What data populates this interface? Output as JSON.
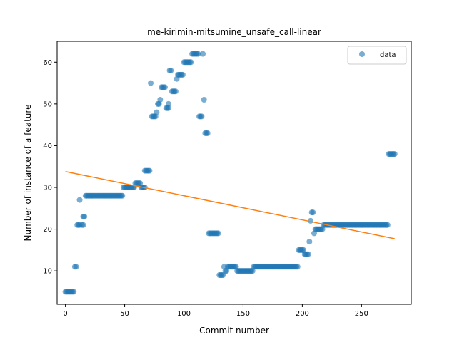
{
  "chart_data": {
    "type": "scatter",
    "title": "me-kirimin-mitsumine_unsafe_call-linear",
    "xlabel": "Commit number",
    "ylabel": "Number of instance of a feature",
    "xlim": [
      -7,
      292
    ],
    "ylim": [
      2,
      65
    ],
    "x_ticks": [
      0,
      50,
      100,
      150,
      200,
      250
    ],
    "y_ticks": [
      10,
      20,
      30,
      40,
      50,
      60
    ],
    "grid": false,
    "legend": {
      "position": "top-right",
      "entries": [
        "data"
      ]
    },
    "colors": {
      "data": "#1f77b4",
      "fit": "#ff7f0e"
    },
    "series": [
      {
        "name": "data",
        "marker": "circle",
        "segments": [
          [
            0,
            7,
            5
          ],
          [
            8,
            9,
            11
          ],
          [
            10,
            12,
            21
          ],
          [
            12,
            12,
            27
          ],
          [
            14,
            15,
            21
          ],
          [
            15,
            16,
            23
          ],
          [
            17,
            48,
            28
          ],
          [
            49,
            58,
            30
          ],
          [
            59,
            63,
            31
          ],
          [
            64,
            67,
            30
          ],
          [
            67,
            71,
            34
          ],
          [
            72,
            72,
            55
          ],
          [
            73,
            76,
            47
          ],
          [
            77,
            77,
            48
          ],
          [
            78,
            79,
            50
          ],
          [
            80,
            80,
            51
          ],
          [
            81,
            84,
            54
          ],
          [
            85,
            87,
            49
          ],
          [
            87,
            87,
            50
          ],
          [
            88,
            89,
            58
          ],
          [
            90,
            93,
            53
          ],
          [
            94,
            94,
            56
          ],
          [
            95,
            99,
            57
          ],
          [
            100,
            106,
            60
          ],
          [
            107,
            112,
            62
          ],
          [
            113,
            115,
            47
          ],
          [
            116,
            116,
            62
          ],
          [
            117,
            117,
            51
          ],
          [
            118,
            120,
            43
          ],
          [
            121,
            129,
            19
          ],
          [
            130,
            133,
            9
          ],
          [
            134,
            134,
            11
          ],
          [
            135,
            136,
            10
          ],
          [
            137,
            144,
            11
          ],
          [
            145,
            158,
            10
          ],
          [
            159,
            196,
            11
          ],
          [
            197,
            201,
            15
          ],
          [
            202,
            205,
            14
          ],
          [
            206,
            206,
            17
          ],
          [
            207,
            207,
            22
          ],
          [
            208,
            209,
            24
          ],
          [
            210,
            210,
            19
          ],
          [
            211,
            212,
            20
          ],
          [
            213,
            217,
            20
          ],
          [
            218,
            272,
            21
          ],
          [
            273,
            278,
            38
          ]
        ]
      },
      {
        "name": "",
        "kind": "linear-fit",
        "x": [
          0,
          278
        ],
        "y": [
          33.8,
          17.7
        ]
      }
    ]
  }
}
